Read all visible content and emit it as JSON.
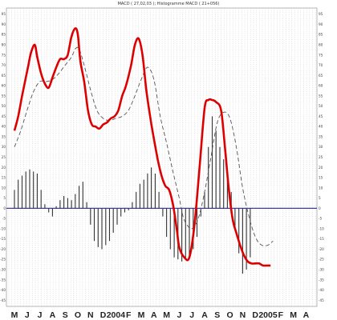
{
  "chart_data": {
    "type": "line",
    "title": "MACD ( 27,02,03 ); Histogramme MACD ( 21+056)",
    "y_ticks": [
      95,
      90,
      85,
      80,
      75,
      70,
      65,
      60,
      55,
      50,
      45,
      40,
      35,
      30,
      25,
      20,
      15,
      10,
      5,
      0,
      -5,
      -10,
      -15,
      -20,
      -25,
      -30,
      -35,
      -40,
      -45
    ],
    "ylim": [
      -48,
      98
    ],
    "x_labels": [
      "M",
      "J",
      "J",
      "A",
      "S",
      "O",
      "N",
      "D",
      "2004",
      "F",
      "M",
      "A",
      "M",
      "J",
      "J",
      "A",
      "S",
      "O",
      "N",
      "D",
      "2005",
      "F",
      "M",
      "A"
    ],
    "weekly_grid": true,
    "zero_line_color": "#3a3aa8",
    "series": [
      {
        "style": "solid",
        "color": "#dd0000",
        "x": [
          0,
          0.3,
          0.6,
          0.9,
          1.1,
          1.3,
          1.6,
          1.8,
          2.1,
          2.4,
          2.7,
          3.0,
          3.3,
          3.6,
          3.9,
          4.2,
          4.5,
          4.8,
          5.0,
          5.2,
          5.5,
          5.8,
          6.1,
          6.4,
          6.7,
          7.0,
          7.3,
          7.6,
          7.9,
          8.2,
          8.5,
          8.8,
          9.2,
          9.5,
          9.8,
          10.1,
          10.4,
          10.7,
          11.0,
          11.3,
          11.6,
          11.9,
          12.2,
          12.5,
          12.8,
          13.0,
          13.4,
          13.8,
          14.2,
          14.6,
          15.0,
          15.3,
          15.6,
          15.9,
          16.3,
          16.6,
          16.9,
          17.2,
          17.5,
          17.8,
          18.1,
          18.4,
          18.7,
          19.0,
          19.3,
          19.6,
          19.9,
          20.2
        ],
        "values": [
          38,
          45,
          55,
          64,
          70,
          76,
          80,
          74,
          66,
          61,
          59,
          64,
          69,
          73,
          73,
          75,
          84,
          88,
          85,
          72,
          62,
          48,
          41,
          40,
          39,
          41,
          42,
          44,
          45,
          48,
          55,
          60,
          70,
          80,
          83,
          75,
          58,
          45,
          34,
          24,
          16,
          11,
          9,
          2,
          -10,
          -19,
          -24,
          -24,
          -8,
          20,
          49,
          53,
          53,
          52,
          48,
          30,
          10,
          -5,
          -12,
          -18,
          -23,
          -26,
          -27,
          -27,
          -27,
          -28,
          -28,
          -28
        ]
      },
      {
        "style": "dashed",
        "color": "#555555",
        "x": [
          0,
          0.5,
          1.0,
          1.5,
          2.0,
          2.5,
          3.0,
          3.5,
          4.0,
          4.5,
          4.8,
          5.1,
          5.5,
          6.0,
          6.5,
          7.0,
          7.5,
          8.0,
          8.5,
          9.0,
          9.5,
          10.0,
          10.5,
          11.0,
          11.5,
          12.0,
          12.5,
          13.0,
          13.3,
          13.6,
          14.0,
          14.5,
          15.0,
          15.5,
          16.0,
          16.5,
          17.0,
          17.5,
          18.0,
          18.5,
          19.0,
          19.5,
          20.0,
          20.4
        ],
        "values": [
          30,
          38,
          48,
          57,
          62,
          62,
          63,
          66,
          70,
          74,
          78,
          78,
          70,
          58,
          48,
          44,
          43,
          44,
          45,
          48,
          55,
          63,
          69,
          63,
          45,
          32,
          18,
          5,
          -4,
          -8,
          -10,
          -5,
          8,
          25,
          42,
          47,
          44,
          30,
          10,
          -4,
          -14,
          -18,
          -18,
          -16
        ]
      }
    ],
    "histogram": {
      "color": "#333333",
      "x": [
        0.0,
        0.3,
        0.6,
        0.9,
        1.2,
        1.5,
        1.8,
        2.1,
        2.4,
        2.7,
        3.0,
        3.3,
        3.6,
        3.9,
        4.2,
        4.5,
        4.8,
        5.1,
        5.4,
        5.7,
        6.0,
        6.3,
        6.6,
        6.9,
        7.2,
        7.5,
        7.8,
        8.1,
        8.4,
        8.7,
        9.0,
        9.3,
        9.6,
        9.9,
        10.2,
        10.5,
        10.8,
        11.1,
        11.4,
        11.7,
        12.0,
        12.3,
        12.6,
        12.9,
        13.2,
        13.5,
        13.8,
        14.1,
        14.4,
        14.7,
        15.0,
        15.3,
        15.6,
        15.9,
        16.2,
        16.5,
        16.8,
        17.1,
        17.4,
        17.7,
        18.0,
        18.3,
        18.6
      ],
      "values": [
        9,
        14,
        16,
        18,
        19,
        18,
        17,
        9,
        2,
        -2,
        -4,
        1,
        4,
        6,
        5,
        4,
        7,
        11,
        13,
        3,
        -8,
        -16,
        -19,
        -20,
        -18,
        -16,
        -12,
        -8,
        -4,
        -2,
        -1,
        3,
        8,
        12,
        14,
        17,
        20,
        17,
        8,
        -4,
        -14,
        -20,
        -24,
        -25,
        -26,
        -25,
        -23,
        -20,
        -14,
        -4,
        8,
        30,
        45,
        38,
        30,
        24,
        18,
        8,
        -10,
        -22,
        -32,
        -30,
        -24
      ]
    }
  }
}
